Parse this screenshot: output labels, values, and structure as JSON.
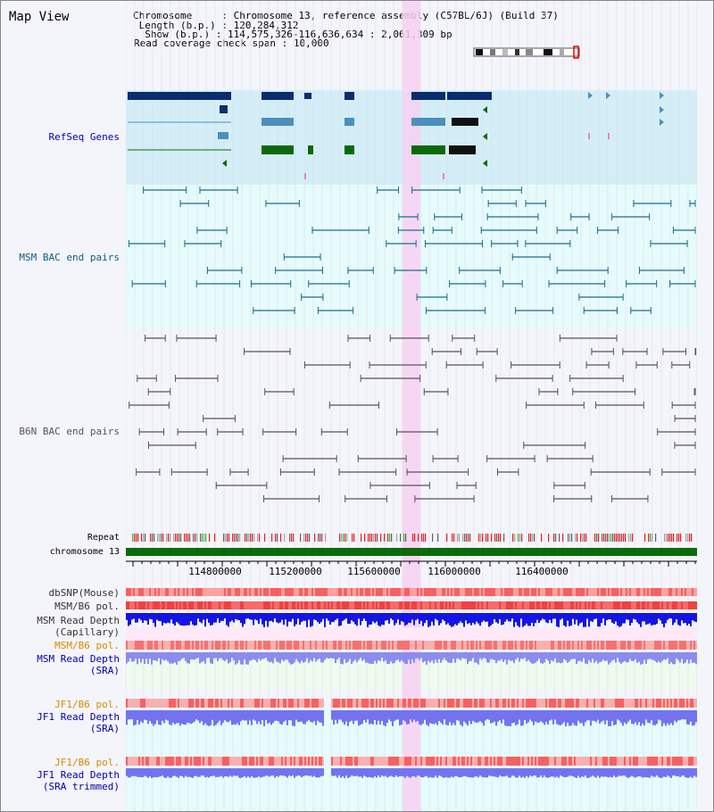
{
  "title": "Map View",
  "header": {
    "chromosome_key": "Chromosome    ",
    "chromosome_val": "Chromosome 13, reference assembly (C57BL/6J) (Build 37)",
    "length_key": " Length (b.p.)",
    "length_val": "120,284,312",
    "show_key": "  Show (b.p.)",
    "show_val": "114,575,326-116,636,634 : 2,061,309 bp",
    "coverage_key": "Read coverage check span",
    "coverage_val": "10,000"
  },
  "tracks": {
    "refseq": "RefSeq Genes",
    "msm_bac": "MSM BAC end pairs",
    "b6n_bac": "B6N BAC end pairs",
    "repeat": "Repeat",
    "chromosome": "chromosome 13",
    "dbsnp": "dbSNP(Mouse)",
    "msm_b6_pol": "MSM/B6 pol.",
    "msm_depth_1": "MSM Read Depth",
    "msm_depth_2": "(Capillary)",
    "msm_b6_pol_sra": "MSM/B6 pol.",
    "msm_sra_1": "MSM Read Depth",
    "msm_sra_2": "(SRA)",
    "jf1_pol_1": "JF1/B6 pol.",
    "jf1_depth_1": "JF1 Read Depth",
    "jf1_depth_2": "(SRA)",
    "jf1_pol_2": "JF1/B6 pol.",
    "jf1_trim_1": "JF1 Read Depth",
    "jf1_trim_2": "(SRA trimmed)"
  },
  "axis": {
    "ticks": [
      "114800000",
      "115200000",
      "115600000",
      "116000000",
      "116400000"
    ]
  },
  "colors": {
    "refseq_bg": "#d4eef8",
    "msm_bg": "#e6fbfb",
    "dark_blue": "#0a2d6e",
    "teal_blue": "#4a8fbd",
    "green": "#0a6a0a",
    "highlight": "#f7d0f2",
    "chrom_green": "#0b6b0b",
    "snp_red": "#f04040",
    "depth_blue": "#1414e6",
    "light_blue": "#7373f0",
    "orange_label": "#d88a00",
    "bac_teal": "#1a6e8c",
    "bac_gray": "#555555"
  }
}
